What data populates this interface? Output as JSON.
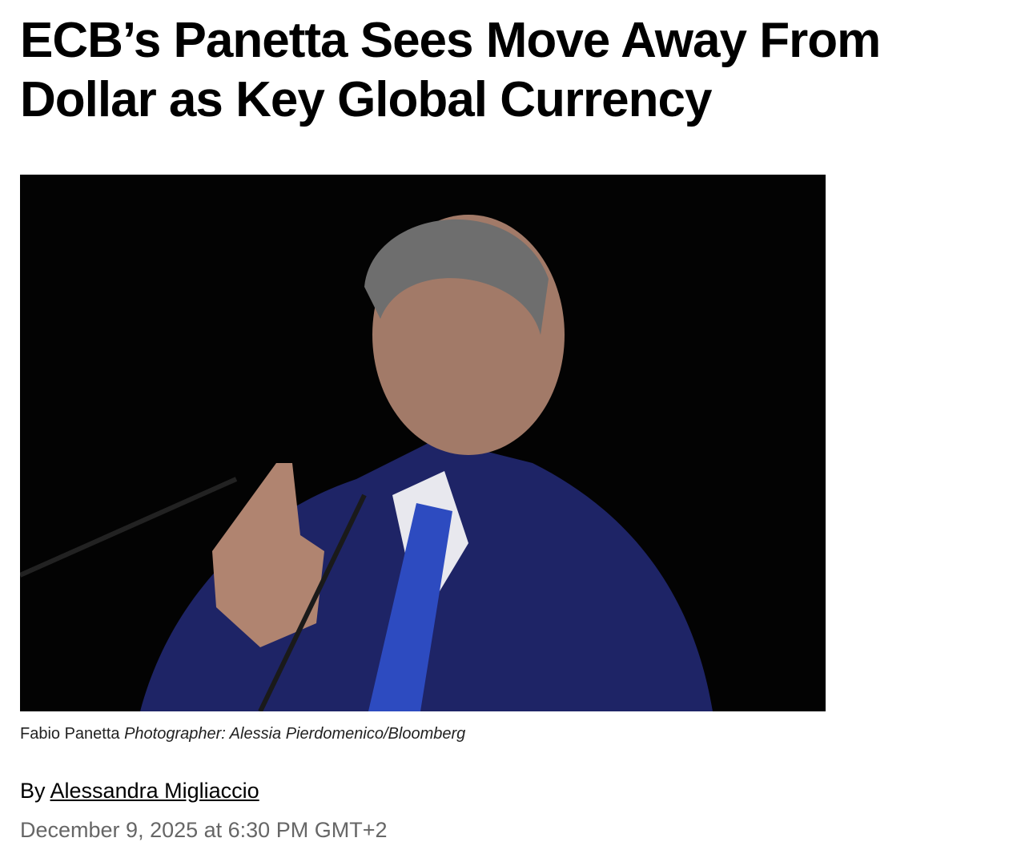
{
  "article": {
    "headline": "ECB’s Panetta Sees Move Away From Dollar as Key Global Currency",
    "image": {
      "alt": "Fabio Panetta"
    },
    "caption": {
      "subject": "Fabio Panetta",
      "credit": "Photographer: Alessia Pierdomenico/Bloomberg"
    },
    "byline": {
      "prefix": "By",
      "author": "Alessandra Migliaccio"
    },
    "date": "December 9, 2025 at 6:30 PM GMT+2"
  }
}
